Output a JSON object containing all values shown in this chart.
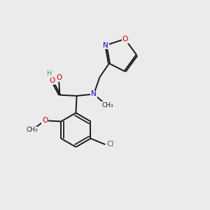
{
  "background_color": "#ebebeb",
  "bond_color": "#1a1a1a",
  "lw": 1.4,
  "scale": 0.082,
  "atom_colors": {
    "O": "#cc0000",
    "N": "#0000cc",
    "Cl": "#228b22",
    "C": "#1a1a1a",
    "H": "#4a9090"
  }
}
